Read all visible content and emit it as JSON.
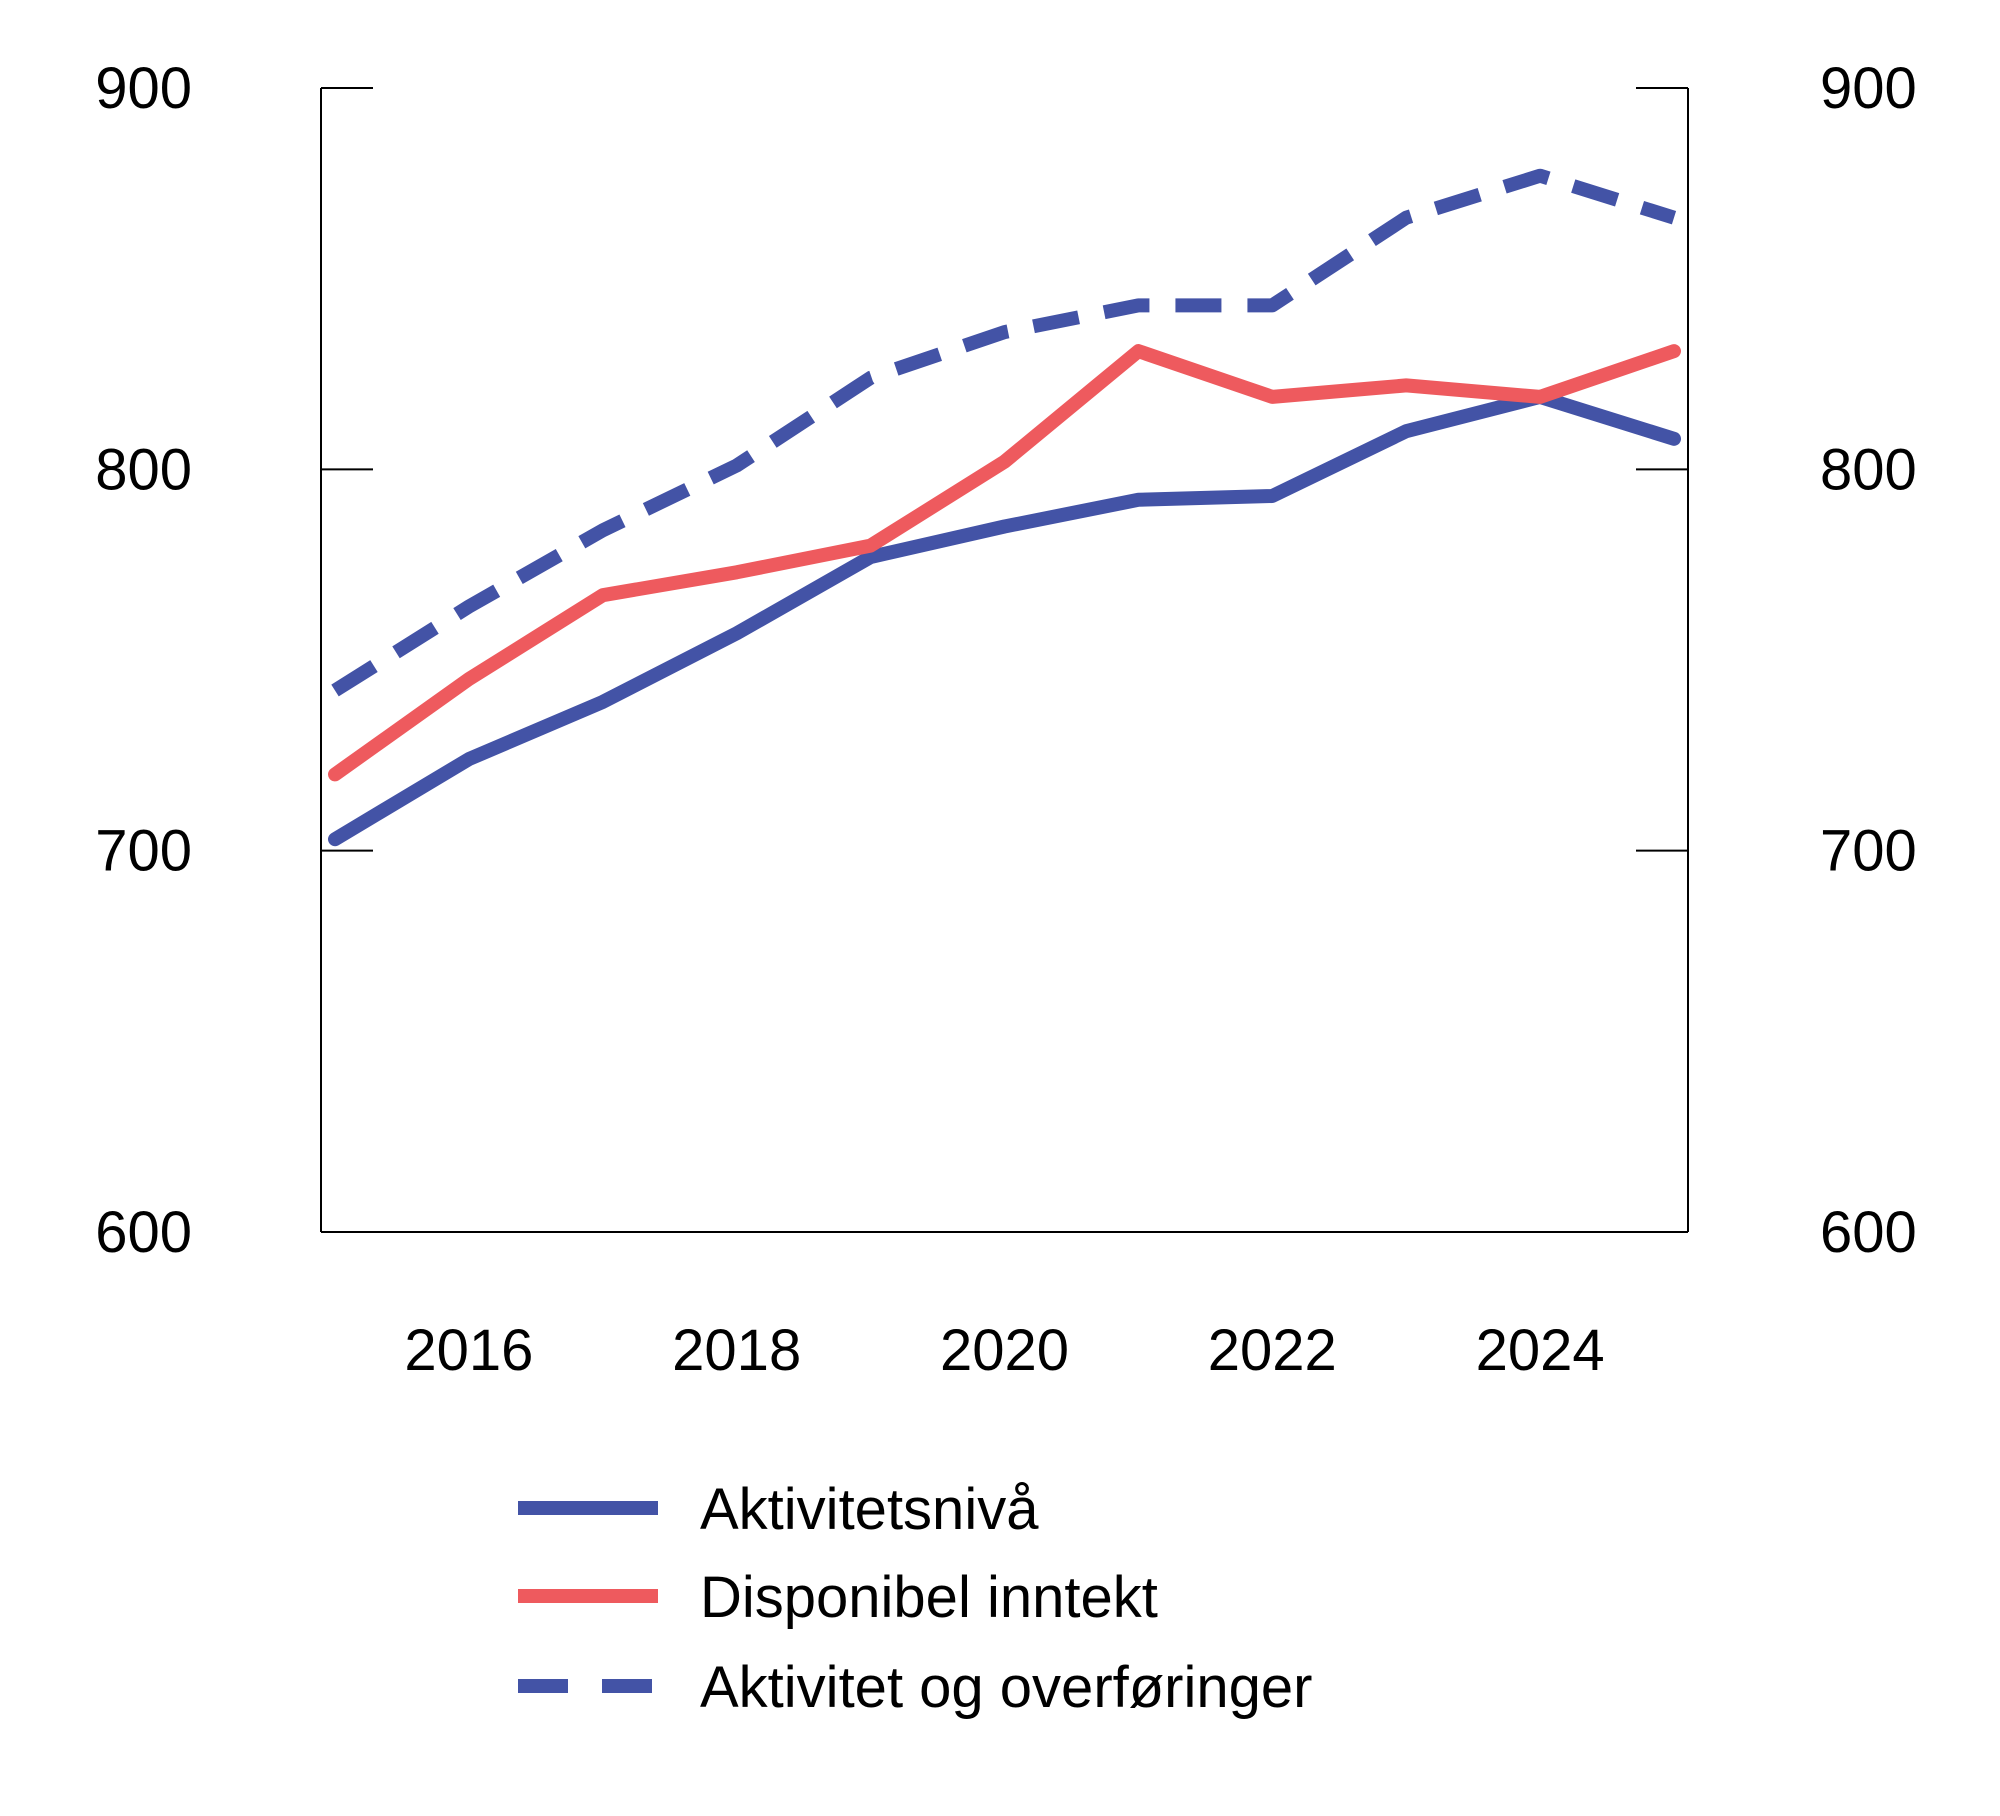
{
  "chart_data": {
    "type": "line",
    "x": [
      2015,
      2016,
      2017,
      2018,
      2019,
      2020,
      2021,
      2022,
      2023,
      2024,
      2025
    ],
    "x_tick_labels": [
      "2016",
      "2018",
      "2020",
      "2022",
      "2024"
    ],
    "x_tick_values": [
      2016,
      2018,
      2020,
      2022,
      2024
    ],
    "ylim": [
      600,
      900
    ],
    "y_ticks": [
      600,
      700,
      800,
      900
    ],
    "y_tick_labels": [
      "600",
      "700",
      "800",
      "900"
    ],
    "dual_y_axis": true,
    "grid": false,
    "legend_position": "bottom",
    "series": [
      {
        "name": "Aktivitetsnivå",
        "color": "#4353a6",
        "style": "solid",
        "values": [
          703,
          724,
          739,
          757,
          777,
          785,
          792,
          793,
          810,
          819,
          808
        ]
      },
      {
        "name": "Disponibel inntekt",
        "color": "#ee5a5e",
        "style": "solid",
        "values": [
          720,
          745,
          767,
          773,
          780,
          802,
          831,
          819,
          822,
          819,
          831
        ]
      },
      {
        "name": "Aktivitet og overføringer",
        "color": "#4353a6",
        "style": "dashed",
        "values": [
          742,
          764,
          784,
          801,
          824,
          836,
          843,
          843,
          866,
          877,
          866
        ]
      }
    ]
  }
}
